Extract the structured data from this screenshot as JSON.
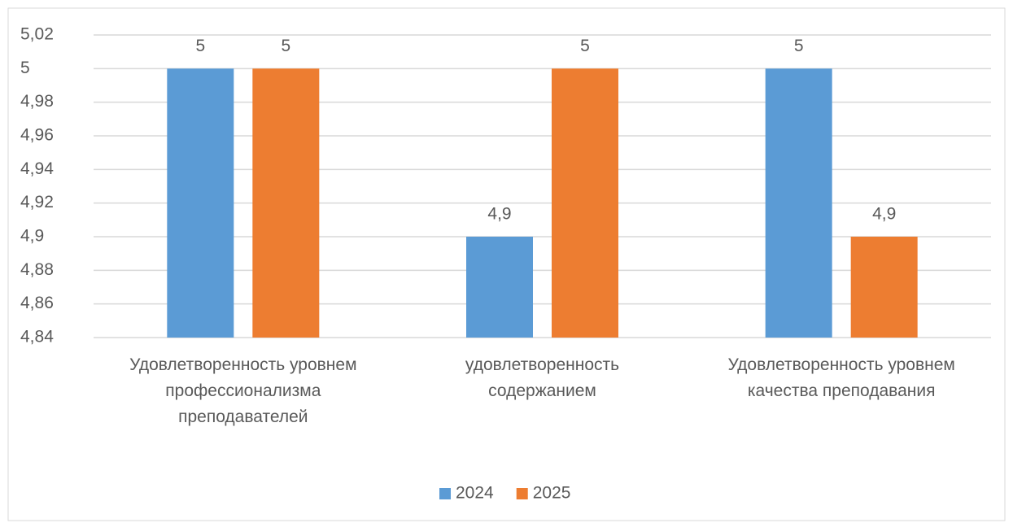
{
  "chart_data": {
    "type": "bar",
    "categories": [
      "Удовлетворенность уровнем профессионализма преподавателей",
      "удовлетворенность содержанием",
      "Удовлетворенность уровнем качества преподавания"
    ],
    "series": [
      {
        "name": "2024",
        "color": "#5b9bd5",
        "values": [
          5,
          4.9,
          5
        ],
        "value_labels": [
          "5",
          "4,9",
          "5"
        ]
      },
      {
        "name": "2025",
        "color": "#ed7d31",
        "values": [
          5,
          5,
          4.9
        ],
        "value_labels": [
          "5",
          "5",
          "4,9"
        ]
      }
    ],
    "ylim": [
      4.84,
      5.02
    ],
    "yticks": [
      {
        "value": 4.84,
        "label": "4,84"
      },
      {
        "value": 4.86,
        "label": "4,86"
      },
      {
        "value": 4.88,
        "label": "4,88"
      },
      {
        "value": 4.9,
        "label": "4,9"
      },
      {
        "value": 4.92,
        "label": "4,92"
      },
      {
        "value": 4.94,
        "label": "4,94"
      },
      {
        "value": 4.96,
        "label": "4,96"
      },
      {
        "value": 4.98,
        "label": "4,98"
      },
      5,
      {
        "value": 5.02,
        "label": "5,02"
      }
    ],
    "grid": true,
    "legend": "bottom"
  }
}
